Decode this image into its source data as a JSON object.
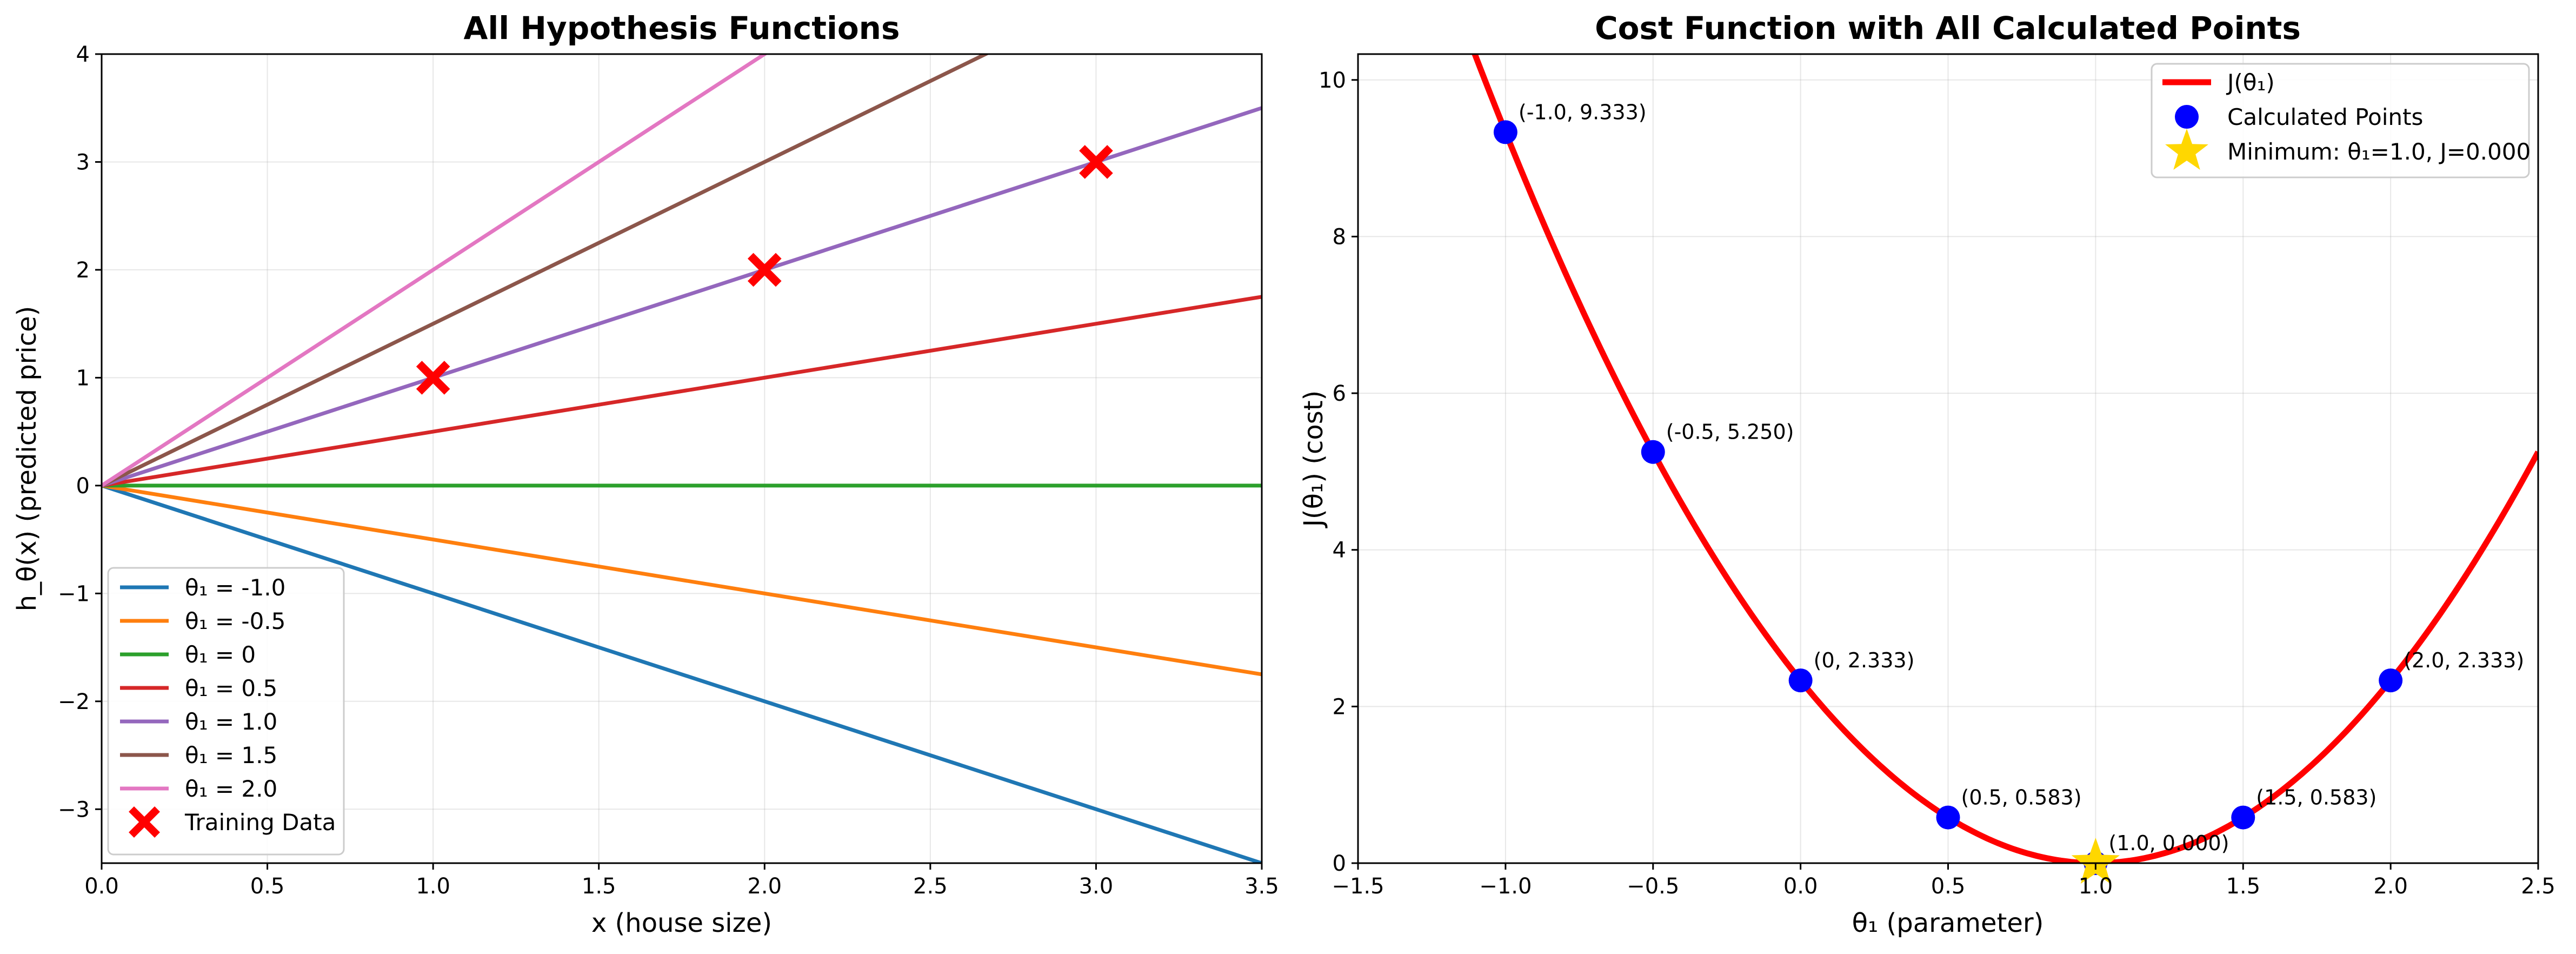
{
  "chart_data": [
    {
      "type": "line",
      "title": "All Hypothesis Functions",
      "xlabel": "x (house size)",
      "ylabel": "h_θ(x) (predicted price)",
      "xlim": [
        0,
        3.5
      ],
      "ylim": [
        -3.5,
        4
      ],
      "xticks": [
        0,
        0.5,
        1,
        1.5,
        2,
        2.5,
        3,
        3.5
      ],
      "xtick_labels": [
        "0.0",
        "0.5",
        "1.0",
        "1.5",
        "2.0",
        "2.5",
        "3.0",
        "3.5"
      ],
      "yticks": [
        -3,
        -2,
        -1,
        0,
        1,
        2,
        3,
        4
      ],
      "ytick_labels": [
        "−3",
        "−2",
        "−1",
        "0",
        "1",
        "2",
        "3",
        "4"
      ],
      "grid": true,
      "legend_position": "lower-left",
      "series": [
        {
          "name": "θ₁ = -1.0",
          "slope": -1.0,
          "x": [
            0,
            3.5
          ],
          "y": [
            0,
            -3.5
          ],
          "color": "#1f77b4"
        },
        {
          "name": "θ₁ = -0.5",
          "slope": -0.5,
          "x": [
            0,
            3.5
          ],
          "y": [
            0,
            -1.75
          ],
          "color": "#ff7f0e"
        },
        {
          "name": "θ₁ = 0",
          "slope": 0,
          "x": [
            0,
            3.5
          ],
          "y": [
            0,
            0
          ],
          "color": "#2ca02c"
        },
        {
          "name": "θ₁ = 0.5",
          "slope": 0.5,
          "x": [
            0,
            3.5
          ],
          "y": [
            0,
            1.75
          ],
          "color": "#d62728"
        },
        {
          "name": "θ₁ = 1.0",
          "slope": 1.0,
          "x": [
            0,
            3.5
          ],
          "y": [
            0,
            3.5
          ],
          "color": "#9467bd"
        },
        {
          "name": "θ₁ = 1.5",
          "slope": 1.5,
          "x": [
            0,
            3.5
          ],
          "y": [
            0,
            5.25
          ],
          "color": "#8c564b"
        },
        {
          "name": "θ₁ = 2.0",
          "slope": 2.0,
          "x": [
            0,
            3.5
          ],
          "y": [
            0,
            7.0
          ],
          "color": "#e377c2"
        }
      ],
      "scatter": {
        "name": "Training Data",
        "marker": "x",
        "color": "#ff0000",
        "x": [
          1,
          2,
          3
        ],
        "y": [
          1,
          2,
          3
        ]
      }
    },
    {
      "type": "line",
      "title": "Cost Function with All Calculated Points",
      "xlabel": "θ₁ (parameter)",
      "ylabel": "J(θ₁) (cost)",
      "xlim": [
        -1.5,
        2.5
      ],
      "ylim": [
        0,
        10.33
      ],
      "xticks": [
        -1.5,
        -1,
        -0.5,
        0,
        0.5,
        1,
        1.5,
        2,
        2.5
      ],
      "xtick_labels": [
        "−1.5",
        "−1.0",
        "−0.5",
        "0.0",
        "0.5",
        "1.0",
        "1.5",
        "2.0",
        "2.5"
      ],
      "yticks": [
        0,
        2,
        4,
        6,
        8,
        10
      ],
      "ytick_labels": [
        "0",
        "2",
        "4",
        "6",
        "8",
        "10"
      ],
      "grid": true,
      "legend_position": "top-right",
      "curve": {
        "name": "J(θ₁)",
        "color": "#ff0000",
        "formula": "J = (7/3) * (θ₁ − 1)²",
        "coefficient": 2.3333,
        "vertex": 1.0
      },
      "points": {
        "name": "Calculated Points",
        "color": "#0000ff",
        "x": [
          -1.0,
          -0.5,
          0,
          0.5,
          1.0,
          1.5,
          2.0
        ],
        "y": [
          9.333,
          5.25,
          2.333,
          0.583,
          0.0,
          0.583,
          2.333
        ],
        "labels": [
          "(-1.0, 9.333)",
          "(-0.5, 5.250)",
          "(0, 2.333)",
          "(0.5, 0.583)",
          "(1.0, 0.000)",
          "(1.5, 0.583)",
          "(2.0, 2.333)"
        ]
      },
      "minimum": {
        "name": "Minimum: θ₁=1.0, J=0.000",
        "color": "#ffd700",
        "marker": "star",
        "x": 1.0,
        "y": 0.0
      }
    }
  ]
}
